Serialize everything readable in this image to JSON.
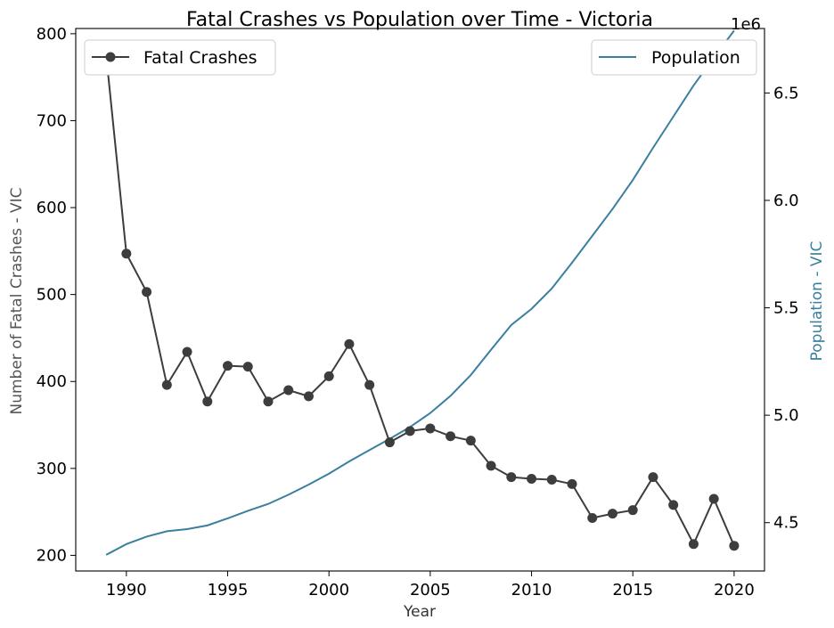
{
  "chart_data": {
    "type": "line",
    "title": "Fatal Crashes vs Population over Time - Victoria",
    "xlabel": "Year",
    "ylabel_left": "Number of Fatal Crashes - VIC",
    "ylabel_right": "Population - VIC",
    "right_axis_offset_label": "1e6",
    "xlim": [
      1987.5,
      2021.5
    ],
    "ylim_left": [
      182,
      806
    ],
    "ylim_right": [
      4.275,
      6.8
    ],
    "x_ticks": [
      1990,
      1995,
      2000,
      2005,
      2010,
      2015,
      2020
    ],
    "y_left_ticks": [
      200,
      300,
      400,
      500,
      600,
      700,
      800
    ],
    "y_right_ticks": [
      4.5,
      5.0,
      5.5,
      6.0,
      6.5
    ],
    "y_right_tick_labels": [
      "4.5",
      "5.0",
      "5.5",
      "6.0",
      "6.5"
    ],
    "grid": false,
    "x": [
      1989,
      1990,
      1991,
      1992,
      1993,
      1994,
      1995,
      1996,
      1997,
      1998,
      1999,
      2000,
      2001,
      2002,
      2003,
      2004,
      2005,
      2006,
      2007,
      2008,
      2009,
      2010,
      2011,
      2012,
      2013,
      2014,
      2015,
      2016,
      2017,
      2018,
      2019,
      2020
    ],
    "series": [
      {
        "name": "Fatal Crashes",
        "axis": "left",
        "color": "#3d3d3d",
        "marker": "circle",
        "legend_position": "top-left",
        "values": [
          776,
          547,
          503,
          396,
          434,
          377,
          418,
          417,
          377,
          390,
          383,
          406,
          443,
          396,
          330,
          343,
          346,
          337,
          332,
          303,
          290,
          288,
          287,
          282,
          243,
          248,
          252,
          290,
          258,
          213,
          265,
          211
        ]
      },
      {
        "name": "Population",
        "axis": "right",
        "color": "#3a7f9e",
        "marker": "none",
        "legend_position": "top-right",
        "values": [
          4.35,
          4.4,
          4.435,
          4.46,
          4.47,
          4.487,
          4.52,
          4.555,
          4.587,
          4.63,
          4.677,
          4.728,
          4.785,
          4.838,
          4.89,
          4.945,
          5.01,
          5.09,
          5.187,
          5.305,
          5.42,
          5.495,
          5.59,
          5.71,
          5.835,
          5.96,
          6.095,
          6.245,
          6.39,
          6.535,
          6.665,
          6.79
        ]
      }
    ]
  }
}
